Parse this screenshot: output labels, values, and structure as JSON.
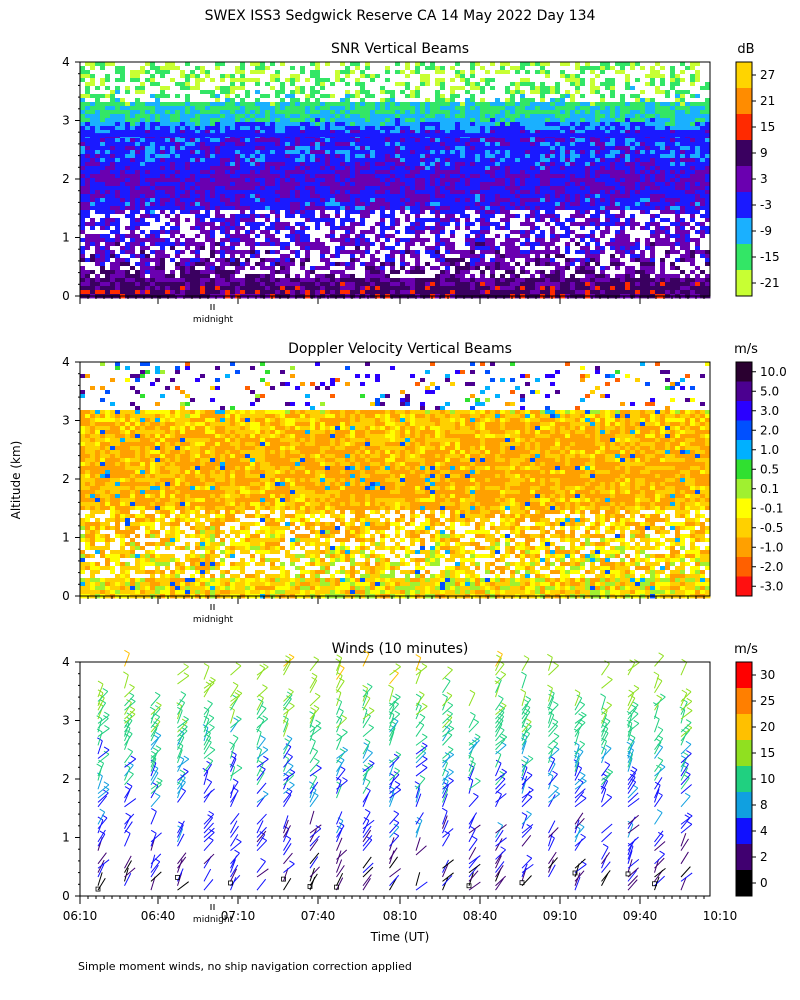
{
  "title": "SWEX ISS3 Sedgwick Reserve CA  14 May 2022 Day 134",
  "y_axis_label": "Altitude (km)",
  "x_axis_label": "Time (UT)",
  "footnote": "Simple moment winds, no ship navigation correction applied",
  "midnight_label": "midnight",
  "chart_data": [
    {
      "type": "heatmap",
      "title": "SNR Vertical Beams",
      "unit": "dB",
      "ylim": [
        0,
        4
      ],
      "y_ticks": [
        0,
        1,
        2,
        3,
        4
      ],
      "colorbar_ticks": [
        "27",
        "21",
        "15",
        "9",
        "3",
        "-3",
        "-9",
        "-15",
        "-21"
      ],
      "colorbar_colors": [
        "#ffd400",
        "#ff8c00",
        "#ff2a00",
        "#3a0060",
        "#6a00b0",
        "#1a1aff",
        "#1ab0ff",
        "#33e666",
        "#c8ff33"
      ],
      "altitude_profile": [
        {
          "alt": 0.1,
          "snr": 9
        },
        {
          "alt": 0.4,
          "snr": 5
        },
        {
          "alt": 0.8,
          "snr": 2
        },
        {
          "alt": 1.2,
          "snr": 0
        },
        {
          "alt": 1.6,
          "snr": -2
        },
        {
          "alt": 2.0,
          "snr": 1
        },
        {
          "alt": 2.4,
          "snr": -4
        },
        {
          "alt": 2.75,
          "snr": -2
        },
        {
          "alt": 3.0,
          "snr": -10
        },
        {
          "alt": 3.3,
          "snr": -14
        },
        {
          "alt": 3.7,
          "snr": -18
        }
      ]
    },
    {
      "type": "heatmap",
      "title": "Doppler Velocity Vertical Beams",
      "unit": "m/s",
      "ylim": [
        0,
        4
      ],
      "y_ticks": [
        0,
        1,
        2,
        3,
        4
      ],
      "colorbar_ticks": [
        "10.0",
        "5.0",
        "3.0",
        "2.0",
        "1.0",
        "0.5",
        "0.1",
        "-0.1",
        "-0.5",
        "-1.0",
        "-2.0",
        "-3.0"
      ],
      "colorbar_colors": [
        "#2a0030",
        "#4b0090",
        "#2a00ff",
        "#0050ff",
        "#00b0ff",
        "#30e030",
        "#a0f030",
        "#ffff00",
        "#ffd000",
        "#ffa000",
        "#ff6000",
        "#ff1010"
      ],
      "altitude_profile": [
        {
          "alt": 0.2,
          "velocity": -0.3
        },
        {
          "alt": 0.8,
          "velocity": -0.4
        },
        {
          "alt": 1.4,
          "velocity": -0.6
        },
        {
          "alt": 2.0,
          "velocity": -0.8
        },
        {
          "alt": 2.6,
          "velocity": -0.7
        },
        {
          "alt": 3.1,
          "velocity": -0.5
        },
        {
          "alt": 3.6,
          "velocity": 0.5
        }
      ]
    },
    {
      "type": "wind_barbs",
      "title": "Winds (10 minutes)",
      "unit": "m/s",
      "ylim": [
        0,
        4
      ],
      "y_ticks": [
        0,
        1,
        2,
        3,
        4
      ],
      "x_ticks": [
        "06:10",
        "06:40",
        "07:10",
        "07:40",
        "08:10",
        "08:40",
        "09:10",
        "09:40",
        "10:10"
      ],
      "colorbar_ticks": [
        "30",
        "25",
        "20",
        "15",
        "10",
        "8",
        "4",
        "2",
        "0"
      ],
      "colorbar_colors": [
        "#ff0000",
        "#ff7f00",
        "#ffc000",
        "#90e020",
        "#20d080",
        "#10a0e0",
        "#1010ff",
        "#400070",
        "#000000"
      ],
      "altitude_profile": [
        {
          "alt": 0.3,
          "speed": 3
        },
        {
          "alt": 0.7,
          "speed": 5
        },
        {
          "alt": 1.0,
          "speed": 6
        },
        {
          "alt": 1.5,
          "speed": 7
        },
        {
          "alt": 2.0,
          "speed": 9
        },
        {
          "alt": 2.5,
          "speed": 11
        },
        {
          "alt": 3.0,
          "speed": 14
        },
        {
          "alt": 3.5,
          "speed": 17
        },
        {
          "alt": 4.0,
          "speed": 20
        }
      ]
    }
  ]
}
